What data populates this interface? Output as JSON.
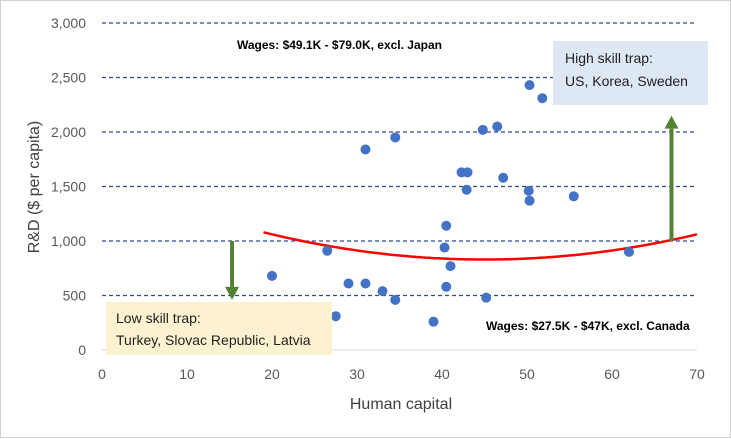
{
  "chart_data": {
    "type": "scatter",
    "xlabel": "Human capital",
    "ylabel": "R&D ($ per capita)",
    "xlim": [
      0,
      70
    ],
    "ylim": [
      0,
      3000
    ],
    "x_ticks": [
      "0",
      "10",
      "20",
      "30",
      "40",
      "50",
      "60",
      "70"
    ],
    "y_ticks": [
      "0",
      "500",
      "1,000",
      "1,500",
      "2,000",
      "2,500",
      "3,000"
    ],
    "grid": "horizontal dashed",
    "points": [
      {
        "x": 20,
        "y": 680
      },
      {
        "x": 26.5,
        "y": 910
      },
      {
        "x": 27.5,
        "y": 310
      },
      {
        "x": 29,
        "y": 610
      },
      {
        "x": 31,
        "y": 610
      },
      {
        "x": 31,
        "y": 1840
      },
      {
        "x": 33,
        "y": 540
      },
      {
        "x": 34.5,
        "y": 460
      },
      {
        "x": 34.5,
        "y": 1950
      },
      {
        "x": 39,
        "y": 260
      },
      {
        "x": 40.3,
        "y": 940
      },
      {
        "x": 40.5,
        "y": 1140
      },
      {
        "x": 40.5,
        "y": 580
      },
      {
        "x": 41,
        "y": 770
      },
      {
        "x": 42.3,
        "y": 1630
      },
      {
        "x": 42.9,
        "y": 1470
      },
      {
        "x": 43,
        "y": 1630
      },
      {
        "x": 44.8,
        "y": 2020
      },
      {
        "x": 45.2,
        "y": 480
      },
      {
        "x": 46.5,
        "y": 2050
      },
      {
        "x": 47.2,
        "y": 1580
      },
      {
        "x": 50.2,
        "y": 1460
      },
      {
        "x": 50.3,
        "y": 1370
      },
      {
        "x": 50.3,
        "y": 2430
      },
      {
        "x": 51.8,
        "y": 2310
      },
      {
        "x": 55.5,
        "y": 1410
      },
      {
        "x": 62,
        "y": 900
      }
    ],
    "trendline": {
      "type": "quadratic",
      "x": [
        19,
        70
      ],
      "vertex_x": 45,
      "vertex_y": 830,
      "y_at_19": 1080
    },
    "annotations": {
      "wages_high": "Wages: $49.1K - $79.0K, excl. Japan",
      "wages_low": "Wages: $27.5K - $47K, excl. Canada",
      "high_trap_line1": "High skill trap:",
      "high_trap_line2": "US, Korea, Sweden",
      "low_trap_line1": "Low skill trap:",
      "low_trap_line2": "Turkey, Slovac Republic, Latvia"
    },
    "arrows": [
      {
        "name": "up-arrow",
        "x": 67,
        "from": 1000,
        "to": 2150
      },
      {
        "name": "down-arrow",
        "x": 15.3,
        "from": 1000,
        "to": 460
      }
    ]
  },
  "colors": {
    "point": "#4472c4",
    "trend": "#ff0000",
    "arrow": "#548235",
    "grid": "#2f4b8f",
    "high_box": "#dde8f4",
    "low_box": "#fdf2d0"
  }
}
